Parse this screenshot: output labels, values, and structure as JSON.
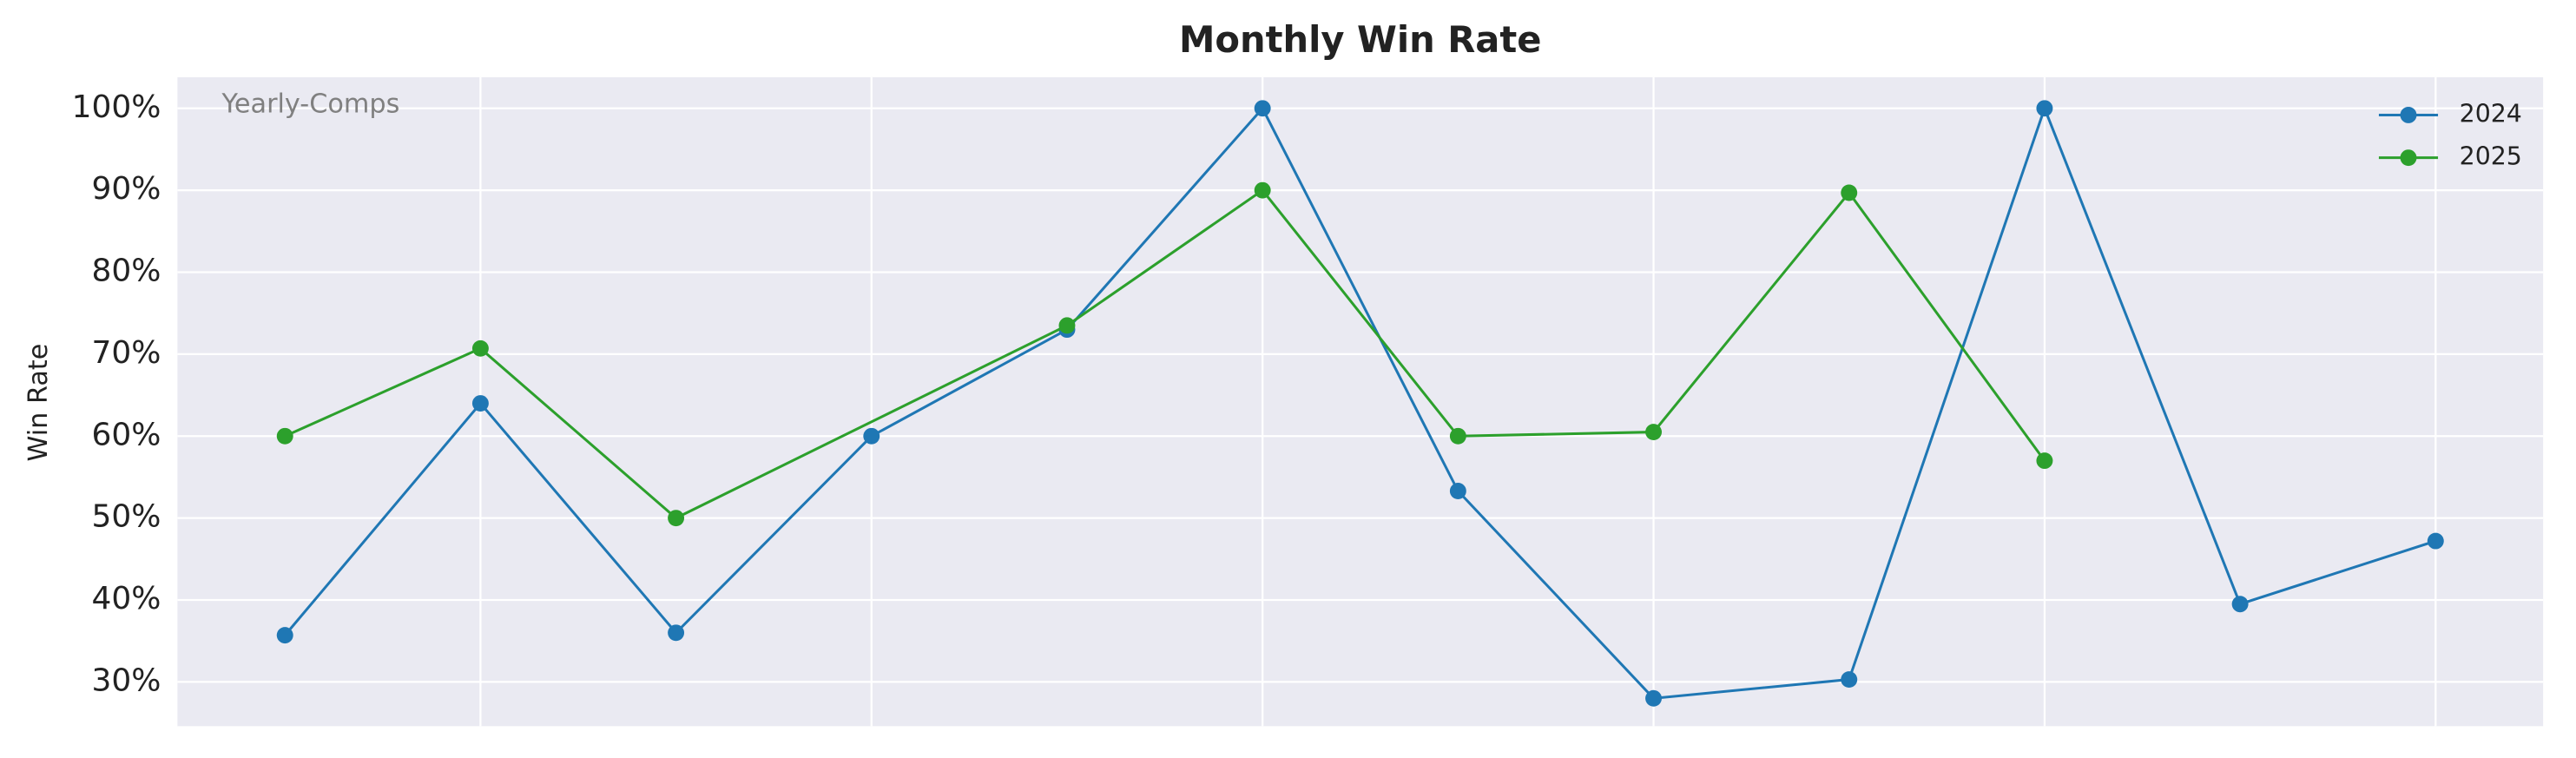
{
  "chart_data": {
    "type": "line",
    "title": "Monthly Win Rate",
    "ylabel": "Win Rate",
    "annotation": "Yearly-Comps",
    "x": [
      1,
      2,
      3,
      4,
      5,
      6,
      7,
      8,
      9,
      10,
      11,
      12
    ],
    "categories": [
      null,
      null,
      null,
      null,
      null,
      null,
      null,
      null,
      null,
      null,
      null,
      null
    ],
    "series": [
      {
        "name": "2024",
        "color": "#1f77b4",
        "x": [
          1,
          2,
          3,
          4,
          5,
          6,
          7,
          8,
          9,
          10,
          11,
          12
        ],
        "values": [
          35.7,
          64,
          36,
          60,
          73,
          100,
          53.3,
          28,
          30.3,
          100,
          39.5,
          47.2
        ]
      },
      {
        "name": "2025",
        "color": "#2ca02c",
        "x": [
          1,
          2,
          3,
          5,
          6,
          7,
          8,
          9,
          10
        ],
        "values": [
          60,
          70.7,
          50,
          73.5,
          90,
          60,
          60.5,
          89.7,
          57
        ]
      }
    ],
    "xlim": [
      0.45,
      12.55
    ],
    "xticks": [
      2,
      4,
      6,
      8,
      10,
      12
    ],
    "ylim": [
      24.6,
      103.8
    ],
    "yticks": [
      {
        "value": 30,
        "label": "30%"
      },
      {
        "value": 40,
        "label": "40%"
      },
      {
        "value": 50,
        "label": "50%"
      },
      {
        "value": 60,
        "label": "60%"
      },
      {
        "value": 70,
        "label": "70%"
      },
      {
        "value": 80,
        "label": "80%"
      },
      {
        "value": 90,
        "label": "90%"
      },
      {
        "value": 100,
        "label": "100%"
      }
    ],
    "grid": true,
    "legend": "upper right"
  }
}
